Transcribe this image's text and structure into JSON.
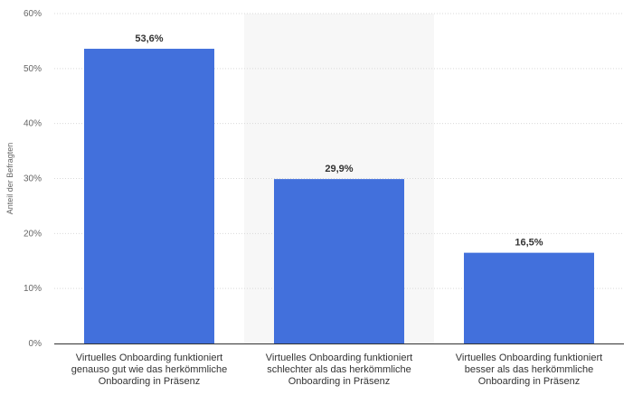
{
  "chart_data": {
    "type": "bar",
    "categories": [
      [
        "Virtuelles Onboarding funktioniert",
        "genauso gut wie das herkömmliche",
        "Onboarding in Präsenz"
      ],
      [
        "Virtuelles Onboarding funktioniert",
        "schlechter als das herkömmliche",
        "Onboarding in Präsenz"
      ],
      [
        "Virtuelles Onboarding funktioniert",
        "besser als das herkömmliche",
        "Onboarding in Präsenz"
      ]
    ],
    "values": [
      53.6,
      29.9,
      16.5
    ],
    "value_labels": [
      "53,6%",
      "29,9%",
      "16,5%"
    ],
    "title": "",
    "xlabel": "",
    "ylabel": "Anteil der Befragten",
    "ylim": [
      0,
      60
    ],
    "yticks": [
      0,
      10,
      20,
      30,
      40,
      50,
      60
    ],
    "ytick_labels": [
      "0%",
      "10%",
      "20%",
      "30%",
      "40%",
      "50%",
      "60%"
    ],
    "grid": true,
    "highlighted_category_index": 1,
    "colors": {
      "bar": "#4270dc",
      "grid": "#d9d9d9",
      "highlight_band": "#f7f7f7",
      "axis": "#333333"
    }
  }
}
